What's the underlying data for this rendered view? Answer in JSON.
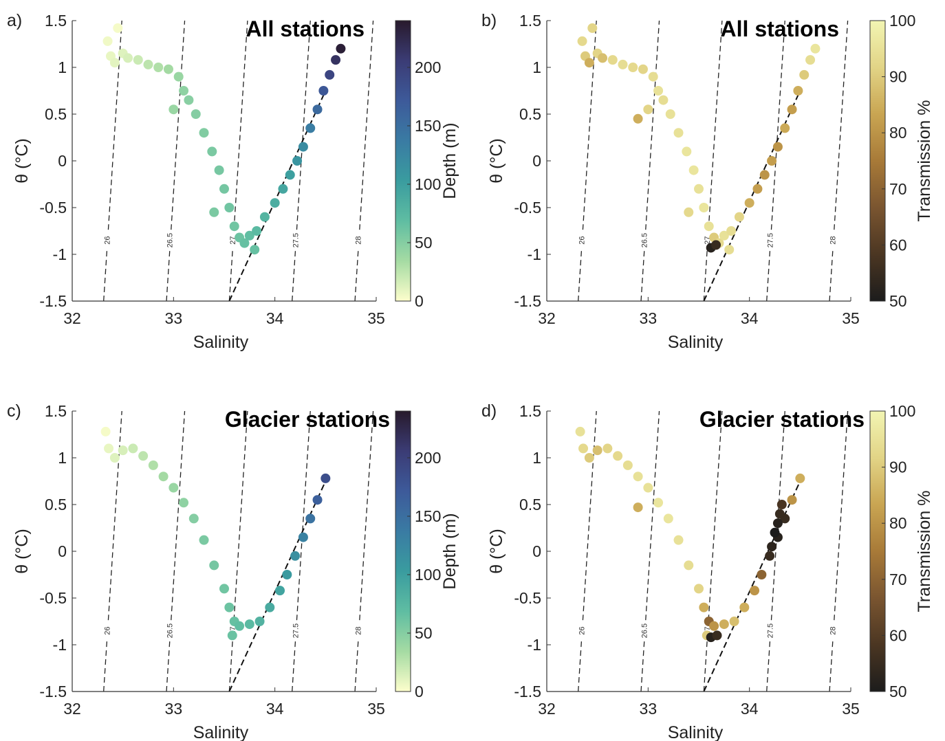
{
  "chart_data": [
    {
      "type": "scatter",
      "panel": "a)",
      "title": "All stations",
      "xlabel": "Salinity",
      "ylabel": "θ (°C)",
      "xlim": [
        32,
        35
      ],
      "ylim": [
        -1.5,
        1.5
      ],
      "xticks": [
        32,
        33,
        34,
        35
      ],
      "yticks": [
        -1.5,
        -1,
        -0.5,
        0,
        0.5,
        1,
        1.5
      ],
      "isopycnals": [
        26,
        26.5,
        27,
        27.5,
        28
      ],
      "reference_line": {
        "x": [
          33.55,
          34.5
        ],
        "y": [
          -1.5,
          0.75
        ]
      },
      "x": [
        32.35,
        32.45,
        32.38,
        32.42,
        32.5,
        32.55,
        32.65,
        32.75,
        32.85,
        32.95,
        33.05,
        33.1,
        33.0,
        33.15,
        33.22,
        33.3,
        33.38,
        33.45,
        33.5,
        33.4,
        33.55,
        33.6,
        33.65,
        33.7,
        33.8,
        33.75,
        33.82,
        33.9,
        34.0,
        34.08,
        34.15,
        34.22,
        34.28,
        34.35,
        34.42,
        34.48,
        34.54,
        34.6,
        34.65
      ],
      "y": [
        1.28,
        1.42,
        1.12,
        1.05,
        1.15,
        1.1,
        1.08,
        1.03,
        1.0,
        0.98,
        0.9,
        0.75,
        0.55,
        0.65,
        0.5,
        0.3,
        0.1,
        -0.1,
        -0.3,
        -0.55,
        -0.5,
        -0.7,
        -0.82,
        -0.88,
        -0.95,
        -0.8,
        -0.75,
        -0.6,
        -0.45,
        -0.3,
        -0.15,
        0,
        0.15,
        0.35,
        0.55,
        0.75,
        0.92,
        1.08,
        1.2
      ],
      "c": [
        5,
        3,
        8,
        10,
        12,
        15,
        20,
        25,
        30,
        35,
        40,
        45,
        40,
        48,
        50,
        52,
        55,
        57,
        58,
        55,
        60,
        60,
        62,
        65,
        65,
        68,
        72,
        78,
        85,
        92,
        100,
        110,
        120,
        135,
        155,
        175,
        195,
        215,
        235
      ],
      "colorbar": {
        "label": "Depth (m)",
        "lim": [
          0,
          240
        ],
        "ticks": [
          0,
          50,
          100,
          150,
          200
        ],
        "colors": [
          "#fdfecc",
          "#a5dba3",
          "#5fbda2",
          "#3a9c9f",
          "#3a7ba3",
          "#3d5a9a",
          "#3b3c75",
          "#281a2c"
        ]
      }
    },
    {
      "type": "scatter",
      "panel": "b)",
      "title": "All stations",
      "xlabel": "Salinity",
      "ylabel": "θ (°C)",
      "xlim": [
        32,
        35
      ],
      "ylim": [
        -1.5,
        1.5
      ],
      "xticks": [
        32,
        33,
        34,
        35
      ],
      "yticks": [
        -1.5,
        -1,
        -0.5,
        0,
        0.5,
        1,
        1.5
      ],
      "isopycnals": [
        26,
        26.5,
        27,
        27.5,
        28
      ],
      "reference_line": {
        "x": [
          33.55,
          34.5
        ],
        "y": [
          -1.5,
          0.75
        ]
      },
      "x": [
        32.35,
        32.45,
        32.38,
        32.42,
        32.5,
        32.55,
        32.65,
        32.75,
        32.85,
        32.95,
        33.05,
        33.1,
        33.0,
        33.15,
        33.22,
        33.3,
        33.38,
        33.45,
        33.5,
        33.4,
        33.55,
        33.6,
        33.65,
        33.7,
        33.8,
        33.75,
        33.82,
        33.9,
        34.0,
        34.08,
        34.15,
        34.22,
        34.28,
        34.35,
        34.42,
        34.48,
        34.54,
        34.6,
        34.65,
        33.62,
        33.67,
        32.9
      ],
      "y": [
        1.28,
        1.42,
        1.12,
        1.05,
        1.15,
        1.1,
        1.08,
        1.03,
        1.0,
        0.98,
        0.9,
        0.75,
        0.55,
        0.65,
        0.5,
        0.3,
        0.1,
        -0.1,
        -0.3,
        -0.55,
        -0.5,
        -0.7,
        -0.82,
        -0.88,
        -0.95,
        -0.8,
        -0.75,
        -0.6,
        -0.45,
        -0.3,
        -0.15,
        0,
        0.15,
        0.35,
        0.55,
        0.75,
        0.92,
        1.08,
        1.2,
        -0.93,
        -0.9,
        0.45
      ],
      "c": [
        93,
        92,
        90,
        85,
        92,
        88,
        93,
        94,
        93,
        92,
        94,
        95,
        92,
        94,
        95,
        95,
        96,
        96,
        95,
        93,
        96,
        95,
        90,
        93,
        94,
        95,
        94,
        92,
        85,
        82,
        80,
        82,
        80,
        84,
        82,
        85,
        90,
        94,
        96,
        52,
        55,
        85
      ],
      "colorbar": {
        "label": "Transmission %",
        "lim": [
          50,
          100
        ],
        "ticks": [
          50,
          60,
          70,
          80,
          90,
          100
        ],
        "colors": [
          "#1c1c1c",
          "#4b3622",
          "#7a5530",
          "#a87a38",
          "#c9a552",
          "#e2d486",
          "#f2f5b3"
        ]
      }
    },
    {
      "type": "scatter",
      "panel": "c)",
      "title": "Glacier stations",
      "xlabel": "Salinity",
      "ylabel": "θ (°C)",
      "xlim": [
        32,
        35
      ],
      "ylim": [
        -1.5,
        1.5
      ],
      "xticks": [
        32,
        33,
        34,
        35
      ],
      "yticks": [
        -1.5,
        -1,
        -0.5,
        0,
        0.5,
        1,
        1.5
      ],
      "isopycnals": [
        26,
        26.5,
        27,
        27.5,
        28
      ],
      "reference_line": {
        "x": [
          33.55,
          34.5
        ],
        "y": [
          -1.5,
          0.75
        ]
      },
      "x": [
        32.33,
        32.36,
        32.42,
        32.5,
        32.6,
        32.7,
        32.8,
        32.9,
        33.0,
        33.1,
        33.2,
        33.3,
        33.4,
        33.5,
        33.55,
        33.6,
        33.58,
        33.65,
        33.75,
        33.85,
        33.95,
        34.05,
        34.12,
        34.2,
        34.28,
        34.35,
        34.42,
        34.5
      ],
      "y": [
        1.28,
        1.1,
        1.0,
        1.08,
        1.1,
        1.02,
        0.92,
        0.8,
        0.68,
        0.52,
        0.35,
        0.12,
        -0.15,
        -0.4,
        -0.6,
        -0.75,
        -0.9,
        -0.8,
        -0.78,
        -0.75,
        -0.6,
        -0.42,
        -0.25,
        -0.05,
        0.15,
        0.35,
        0.55,
        0.78
      ],
      "c": [
        3,
        8,
        12,
        15,
        20,
        25,
        30,
        35,
        40,
        45,
        50,
        55,
        58,
        60,
        62,
        65,
        63,
        68,
        72,
        80,
        88,
        95,
        105,
        115,
        130,
        145,
        165,
        185
      ],
      "colorbar": {
        "label": "Depth (m)",
        "lim": [
          0,
          240
        ],
        "ticks": [
          0,
          50,
          100,
          150,
          200
        ],
        "colors": [
          "#fdfecc",
          "#a5dba3",
          "#5fbda2",
          "#3a9c9f",
          "#3a7ba3",
          "#3d5a9a",
          "#3b3c75",
          "#281a2c"
        ]
      }
    },
    {
      "type": "scatter",
      "panel": "d)",
      "title": "Glacier stations",
      "xlabel": "Salinity",
      "ylabel": "θ (°C)",
      "xlim": [
        32,
        35
      ],
      "ylim": [
        -1.5,
        1.5
      ],
      "xticks": [
        32,
        33,
        34,
        35
      ],
      "yticks": [
        -1.5,
        -1,
        -0.5,
        0,
        0.5,
        1,
        1.5
      ],
      "isopycnals": [
        26,
        26.5,
        27,
        27.5,
        28
      ],
      "reference_line": {
        "x": [
          33.55,
          34.5
        ],
        "y": [
          -1.5,
          0.75
        ]
      },
      "x": [
        32.33,
        32.36,
        32.42,
        32.5,
        32.6,
        32.7,
        32.8,
        32.9,
        33.0,
        33.1,
        33.2,
        33.3,
        33.4,
        33.5,
        33.55,
        33.6,
        33.58,
        33.65,
        33.75,
        33.85,
        33.95,
        34.05,
        34.12,
        34.2,
        34.28,
        34.35,
        34.42,
        34.5,
        33.62,
        33.68,
        32.9,
        34.25,
        34.28,
        34.22,
        34.3,
        34.32
      ],
      "y": [
        1.28,
        1.1,
        1.0,
        1.08,
        1.1,
        1.02,
        0.92,
        0.8,
        0.68,
        0.52,
        0.35,
        0.12,
        -0.15,
        -0.4,
        -0.6,
        -0.75,
        -0.9,
        -0.8,
        -0.78,
        -0.75,
        -0.6,
        -0.42,
        -0.25,
        -0.05,
        0.15,
        0.35,
        0.55,
        0.78,
        -0.92,
        -0.9,
        0.47,
        0.2,
        0.3,
        0.05,
        0.4,
        0.5
      ],
      "c": [
        95,
        93,
        90,
        88,
        92,
        93,
        94,
        95,
        95,
        96,
        96,
        95,
        94,
        92,
        85,
        70,
        90,
        80,
        85,
        88,
        85,
        80,
        70,
        55,
        52,
        55,
        80,
        85,
        52,
        55,
        85,
        50,
        52,
        53,
        55,
        58
      ],
      "colorbar": {
        "label": "Transmission %",
        "lim": [
          50,
          100
        ],
        "ticks": [
          50,
          60,
          70,
          80,
          90,
          100
        ],
        "colors": [
          "#1c1c1c",
          "#4b3622",
          "#7a5530",
          "#a87a38",
          "#c9a552",
          "#e2d486",
          "#f2f5b3"
        ]
      }
    }
  ]
}
